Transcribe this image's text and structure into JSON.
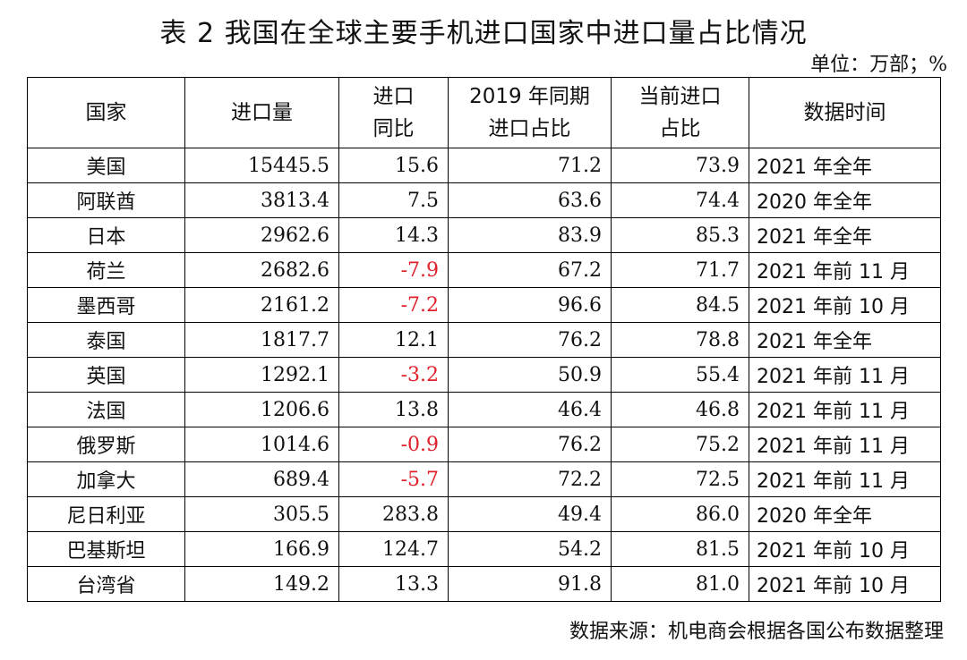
{
  "title": "表 2 我国在全球主要手机进口国家中进口量占比情况",
  "unit": "单位：万部；%",
  "headers": [
    {
      "line1": "国家",
      "line2": ""
    },
    {
      "line1": "进口量",
      "line2": ""
    },
    {
      "line1": "进口",
      "line2": "同比"
    },
    {
      "line1": "2019 年同期",
      "line2": "进口占比"
    },
    {
      "line1": "当前进口",
      "line2": "占比"
    },
    {
      "line1": "数据时间",
      "line2": ""
    }
  ],
  "rows": [
    {
      "country": "美国",
      "volume": "15445.5",
      "yoy": "15.6",
      "share_2019": "71.2",
      "share_now": "73.9",
      "period": "2021 年全年"
    },
    {
      "country": "阿联酋",
      "volume": "3813.4",
      "yoy": "7.5",
      "share_2019": "63.6",
      "share_now": "74.4",
      "period": "2020 年全年"
    },
    {
      "country": "日本",
      "volume": "2962.6",
      "yoy": "14.3",
      "share_2019": "83.9",
      "share_now": "85.3",
      "period": "2021 年全年"
    },
    {
      "country": "荷兰",
      "volume": "2682.6",
      "yoy": "-7.9",
      "share_2019": "67.2",
      "share_now": "71.7",
      "period": "2021 年前 11 月"
    },
    {
      "country": "墨西哥",
      "volume": "2161.2",
      "yoy": "-7.2",
      "share_2019": "96.6",
      "share_now": "84.5",
      "period": "2021 年前 10 月"
    },
    {
      "country": "泰国",
      "volume": "1817.7",
      "yoy": "12.1",
      "share_2019": "76.2",
      "share_now": "78.8",
      "period": "2021 年全年"
    },
    {
      "country": "英国",
      "volume": "1292.1",
      "yoy": "-3.2",
      "share_2019": "50.9",
      "share_now": "55.4",
      "period": "2021 年前 11 月"
    },
    {
      "country": "法国",
      "volume": "1206.6",
      "yoy": "13.8",
      "share_2019": "46.4",
      "share_now": "46.8",
      "period": "2021 年前 11 月"
    },
    {
      "country": "俄罗斯",
      "volume": "1014.6",
      "yoy": "-0.9",
      "share_2019": "76.2",
      "share_now": "75.2",
      "period": "2021 年前 11 月"
    },
    {
      "country": "加拿大",
      "volume": "689.4",
      "yoy": "-5.7",
      "share_2019": "72.2",
      "share_now": "72.5",
      "period": "2021 年前 11 月"
    },
    {
      "country": "尼日利亚",
      "volume": "305.5",
      "yoy": "283.8",
      "share_2019": "49.4",
      "share_now": "86.0",
      "period": "2020 年全年"
    },
    {
      "country": "巴基斯坦",
      "volume": "166.9",
      "yoy": "124.7",
      "share_2019": "54.2",
      "share_now": "81.5",
      "period": "2021 年前 10 月"
    },
    {
      "country": "台湾省",
      "volume": "149.2",
      "yoy": "13.3",
      "share_2019": "91.8",
      "share_now": "81.0",
      "period": "2021 年前 10 月"
    }
  ],
  "source": "数据来源：机电商会根据各国公布数据整理",
  "colors": {
    "negative": "#e0202a",
    "text": "#111111"
  }
}
